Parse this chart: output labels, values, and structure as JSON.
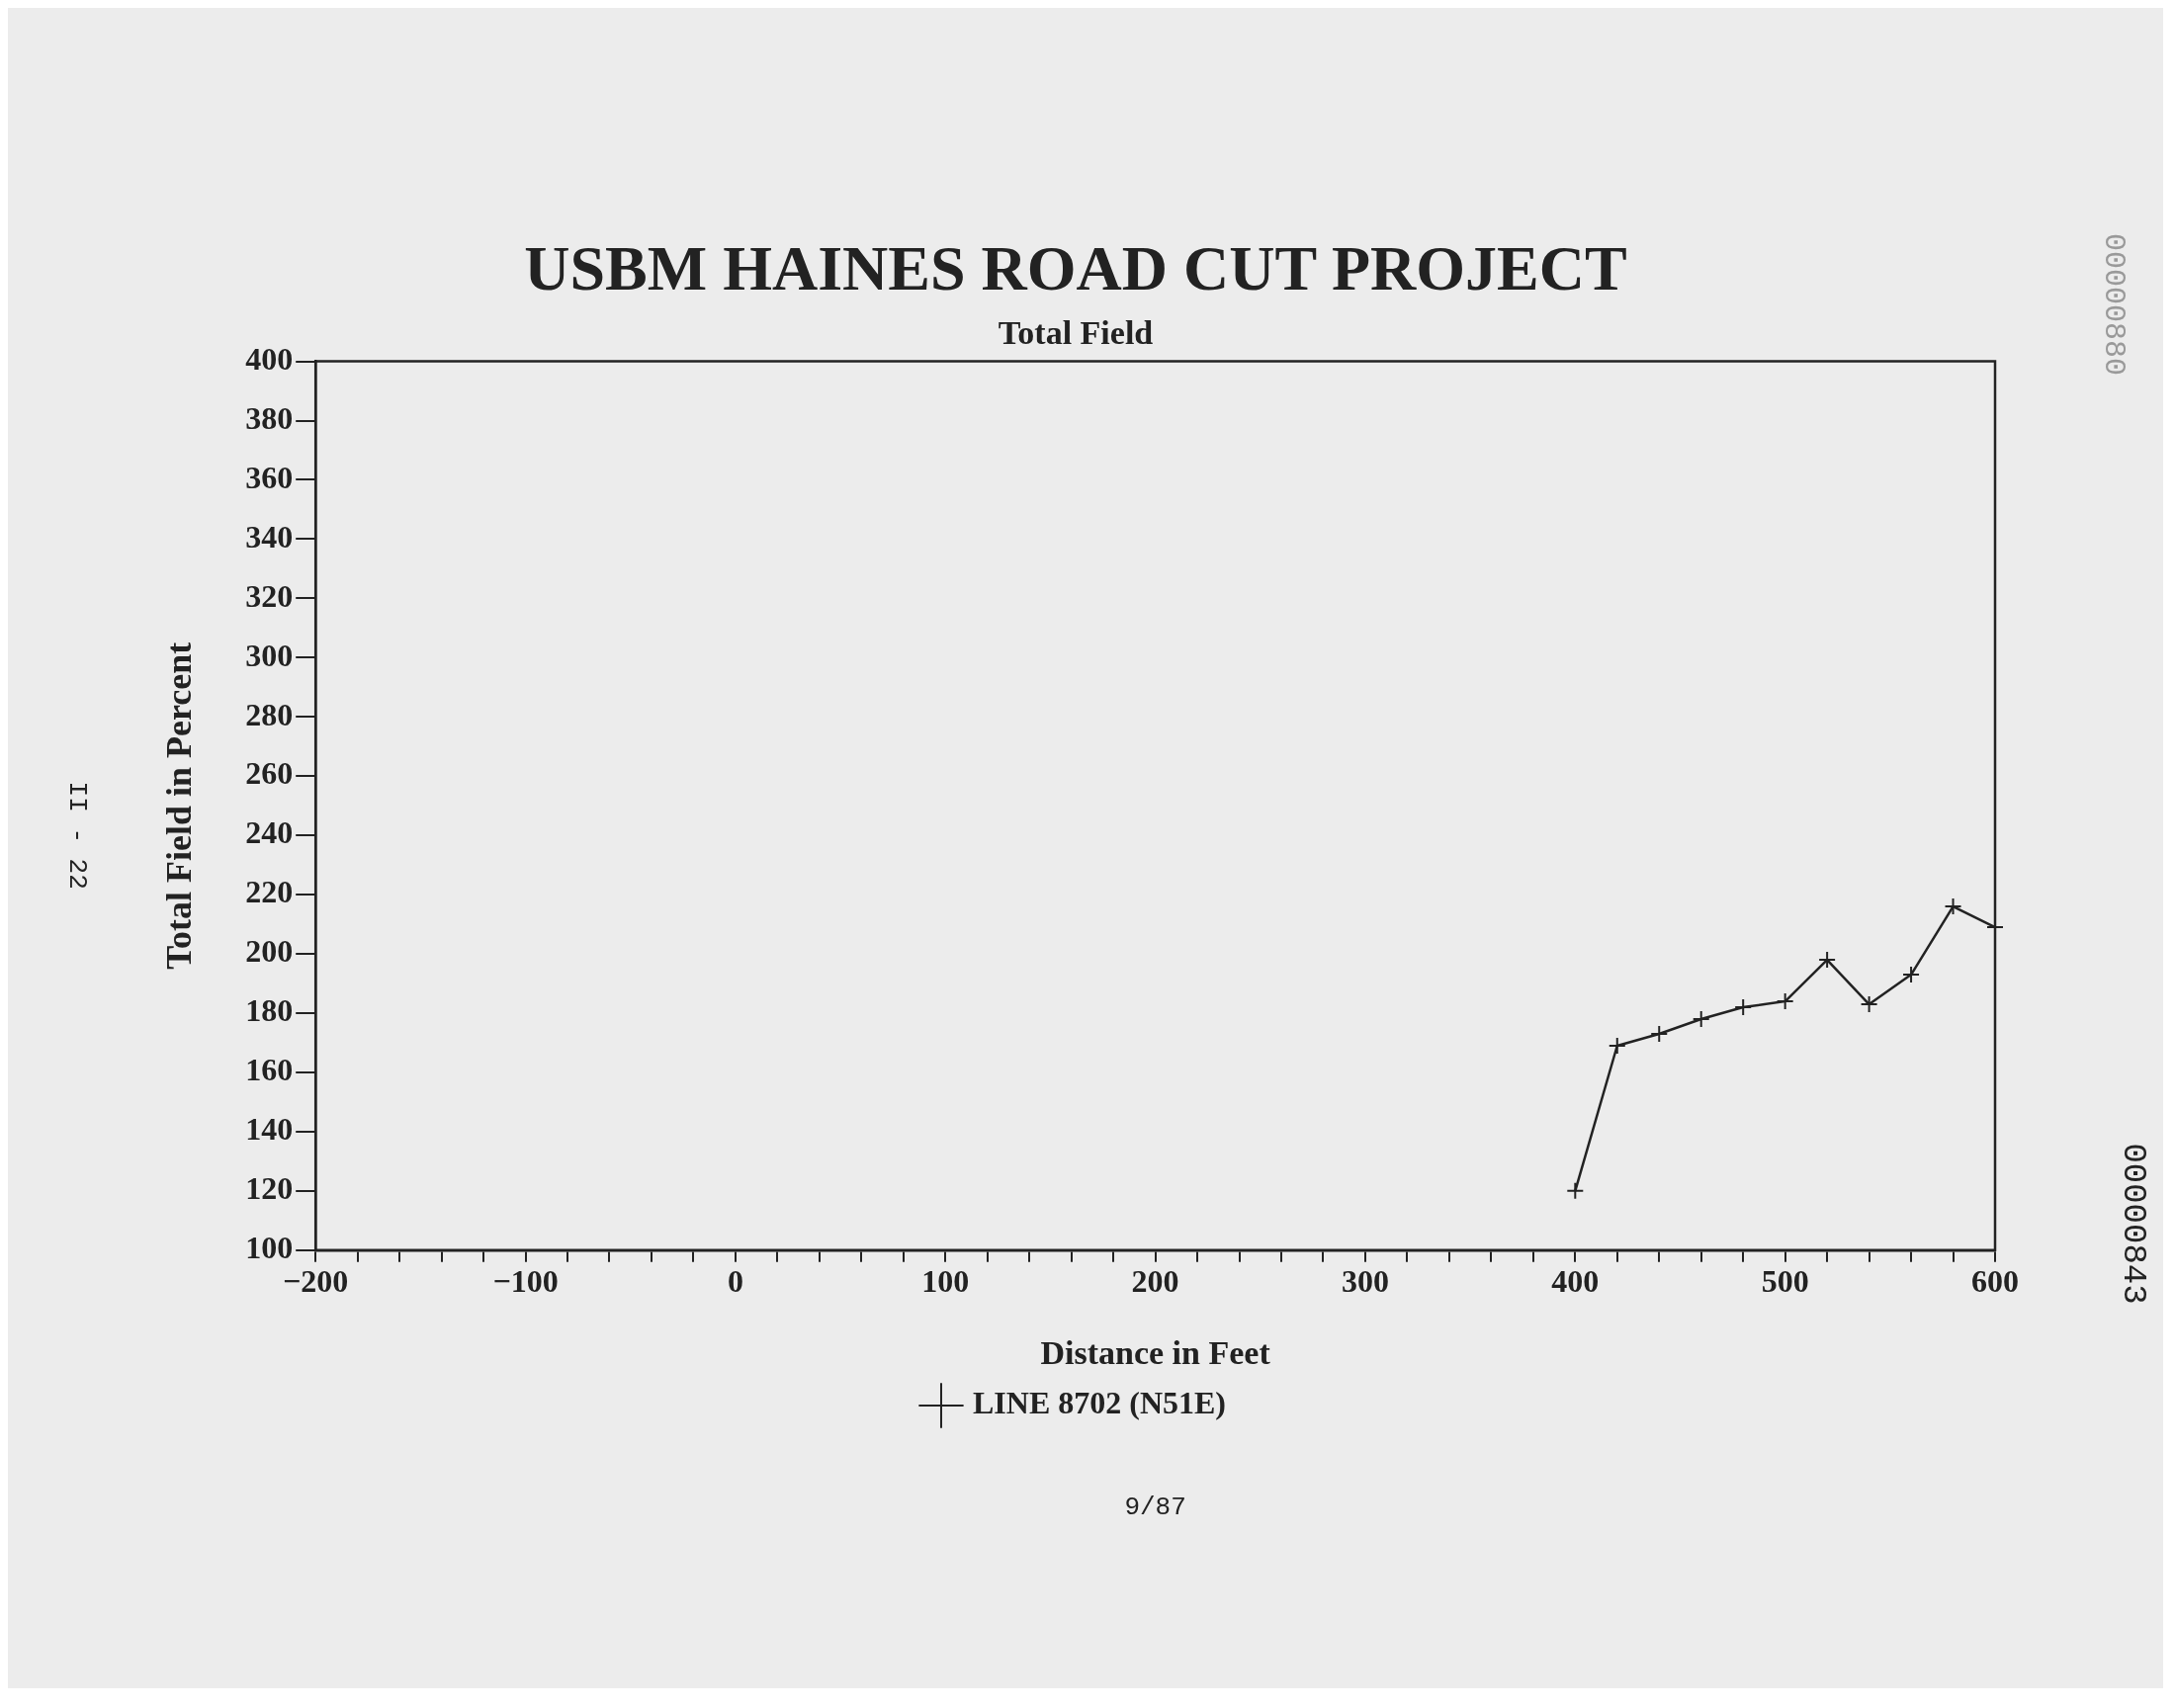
{
  "chart_data": {
    "type": "line",
    "title": "USBM HAINES ROAD CUT PROJECT",
    "subtitle": "Total Field",
    "xlabel": "Distance in Feet",
    "ylabel": "Total Field in Percent",
    "x": [
      400,
      420,
      440,
      460,
      480,
      500,
      520,
      540,
      560,
      580,
      600
    ],
    "series": [
      {
        "name": "LINE 8702 (N51E)",
        "color": "#222222",
        "values": [
          120,
          169,
          173,
          178,
          182,
          184,
          198,
          183,
          193,
          216,
          209
        ]
      }
    ],
    "xlim": [
      -200,
      600
    ],
    "xticks": [
      -200,
      {
        "value": -180,
        "label": null
      },
      {
        "value": -160,
        "label": null
      },
      {
        "value": -140,
        "label": null
      },
      {
        "value": -120,
        "label": null
      },
      -100,
      {
        "value": -80,
        "label": null
      },
      {
        "value": -60,
        "label": null
      },
      {
        "value": -40,
        "label": null
      },
      {
        "value": -20,
        "label": null
      },
      0,
      {
        "value": 20,
        "label": null
      },
      {
        "value": 40,
        "label": null
      },
      {
        "value": 60,
        "label": null
      },
      {
        "value": 80,
        "label": null
      },
      100,
      {
        "value": 120,
        "label": null
      },
      {
        "value": 140,
        "label": null
      },
      {
        "value": 160,
        "label": null
      },
      {
        "value": 180,
        "label": null
      },
      200,
      {
        "value": 220,
        "label": null
      },
      {
        "value": 240,
        "label": null
      },
      {
        "value": 260,
        "label": null
      },
      {
        "value": 280,
        "label": null
      },
      300,
      {
        "value": 320,
        "label": null
      },
      {
        "value": 340,
        "label": null
      },
      {
        "value": 360,
        "label": null
      },
      {
        "value": 380,
        "label": null
      },
      400,
      {
        "value": 420,
        "label": null
      },
      {
        "value": 440,
        "label": null
      },
      {
        "value": 460,
        "label": null
      },
      {
        "value": 480,
        "label": null
      },
      500,
      {
        "value": 520,
        "label": null
      },
      {
        "value": 540,
        "label": null
      },
      {
        "value": 560,
        "label": null
      },
      {
        "value": 580,
        "label": null
      },
      600
    ],
    "ylim": [
      100,
      400
    ],
    "yticks": [
      100,
      120,
      140,
      160,
      180,
      200,
      220,
      240,
      260,
      280,
      300,
      320,
      340,
      360,
      380,
      400
    ],
    "grid": false,
    "legend": "bottom",
    "marker": "cross",
    "line_style": "solid",
    "annotations": [
      "9/87",
      "II - 22",
      "00000843",
      "00000880"
    ]
  }
}
